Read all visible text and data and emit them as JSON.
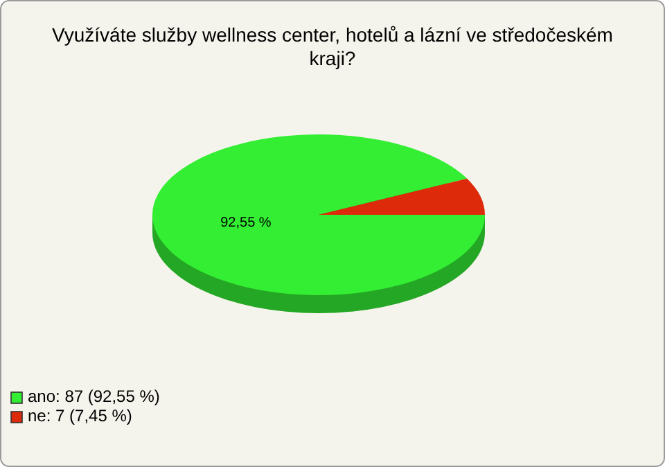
{
  "chart_data": {
    "type": "pie",
    "title": "Využíváte služby wellness center, hotelů a lázní ve středočeském kraji?",
    "categories": [
      "ano: 87 (92,55 %)",
      "ne: 7 (7,45 %)"
    ],
    "values": [
      92.55,
      7.45
    ],
    "colors": [
      "#33ee33",
      "#dd2a0a"
    ],
    "value_labels": [
      "92,55 %",
      null
    ],
    "legend": "bottom left"
  }
}
